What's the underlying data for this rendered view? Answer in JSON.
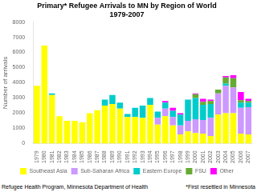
{
  "chart_data": {
    "type": "bar",
    "title": "Primary* Refugee Arrivals to MN by Region of World\n1979-2007",
    "y_label": "Number of arrivals",
    "categories": [
      "1979",
      "1980",
      "1981",
      "1982",
      "1983",
      "1984",
      "1985",
      "1986",
      "1987",
      "1988",
      "1989",
      "1990",
      "1991",
      "1992",
      "1993",
      "1994",
      "1995",
      "1996",
      "1997",
      "1998",
      "1999",
      "2000",
      "2001",
      "2002",
      "2003",
      "2004",
      "2005",
      "2006",
      "2007"
    ],
    "series": [
      {
        "name": "Southeast Asia",
        "color": "#FFFF00",
        "values": [
          3800,
          6450,
          3200,
          1800,
          1500,
          1500,
          1400,
          2000,
          2200,
          2500,
          2600,
          2300,
          1750,
          1750,
          1700,
          2550,
          1250,
          1800,
          1200,
          600,
          800,
          700,
          650,
          500,
          1900,
          2000,
          2000,
          650,
          600
        ]
      },
      {
        "name": "Sub-Saharan Africa",
        "color": "#CC99FF",
        "values": [
          0,
          0,
          0,
          0,
          0,
          0,
          0,
          0,
          0,
          0,
          0,
          0,
          0,
          0,
          0,
          0,
          450,
          500,
          550,
          600,
          700,
          900,
          900,
          1200,
          1400,
          1800,
          1700,
          1700,
          1800
        ]
      },
      {
        "name": "Eastern Europe",
        "color": "#00CCCC",
        "values": [
          0,
          0,
          100,
          0,
          0,
          0,
          0,
          0,
          0,
          400,
          600,
          400,
          200,
          600,
          800,
          450,
          400,
          400,
          400,
          700,
          1400,
          1400,
          1000,
          900,
          0,
          150,
          0,
          350,
          300
        ]
      },
      {
        "name": "FSU",
        "color": "#66AA33",
        "values": [
          0,
          0,
          0,
          0,
          0,
          0,
          0,
          0,
          0,
          0,
          0,
          0,
          0,
          0,
          0,
          0,
          0,
          0,
          0,
          0,
          0,
          250,
          200,
          200,
          250,
          400,
          600,
          150,
          100
        ]
      },
      {
        "name": "Other",
        "color": "#FF00FF",
        "values": [
          0,
          0,
          0,
          0,
          0,
          0,
          0,
          0,
          0,
          0,
          0,
          0,
          0,
          0,
          0,
          0,
          0,
          100,
          200,
          100,
          0,
          50,
          200,
          100,
          0,
          100,
          200,
          550,
          150
        ]
      }
    ],
    "stacked": true,
    "ylim": [
      0,
      8000
    ],
    "yticks": [
      0,
      1000,
      2000,
      3000,
      4000,
      5000,
      6000,
      7000,
      8000
    ],
    "grid": false,
    "legend": "bottom",
    "annotations": [
      "Refugee Health Program, Minnesota Department of Health",
      "*First resettled in Minnesota"
    ]
  }
}
